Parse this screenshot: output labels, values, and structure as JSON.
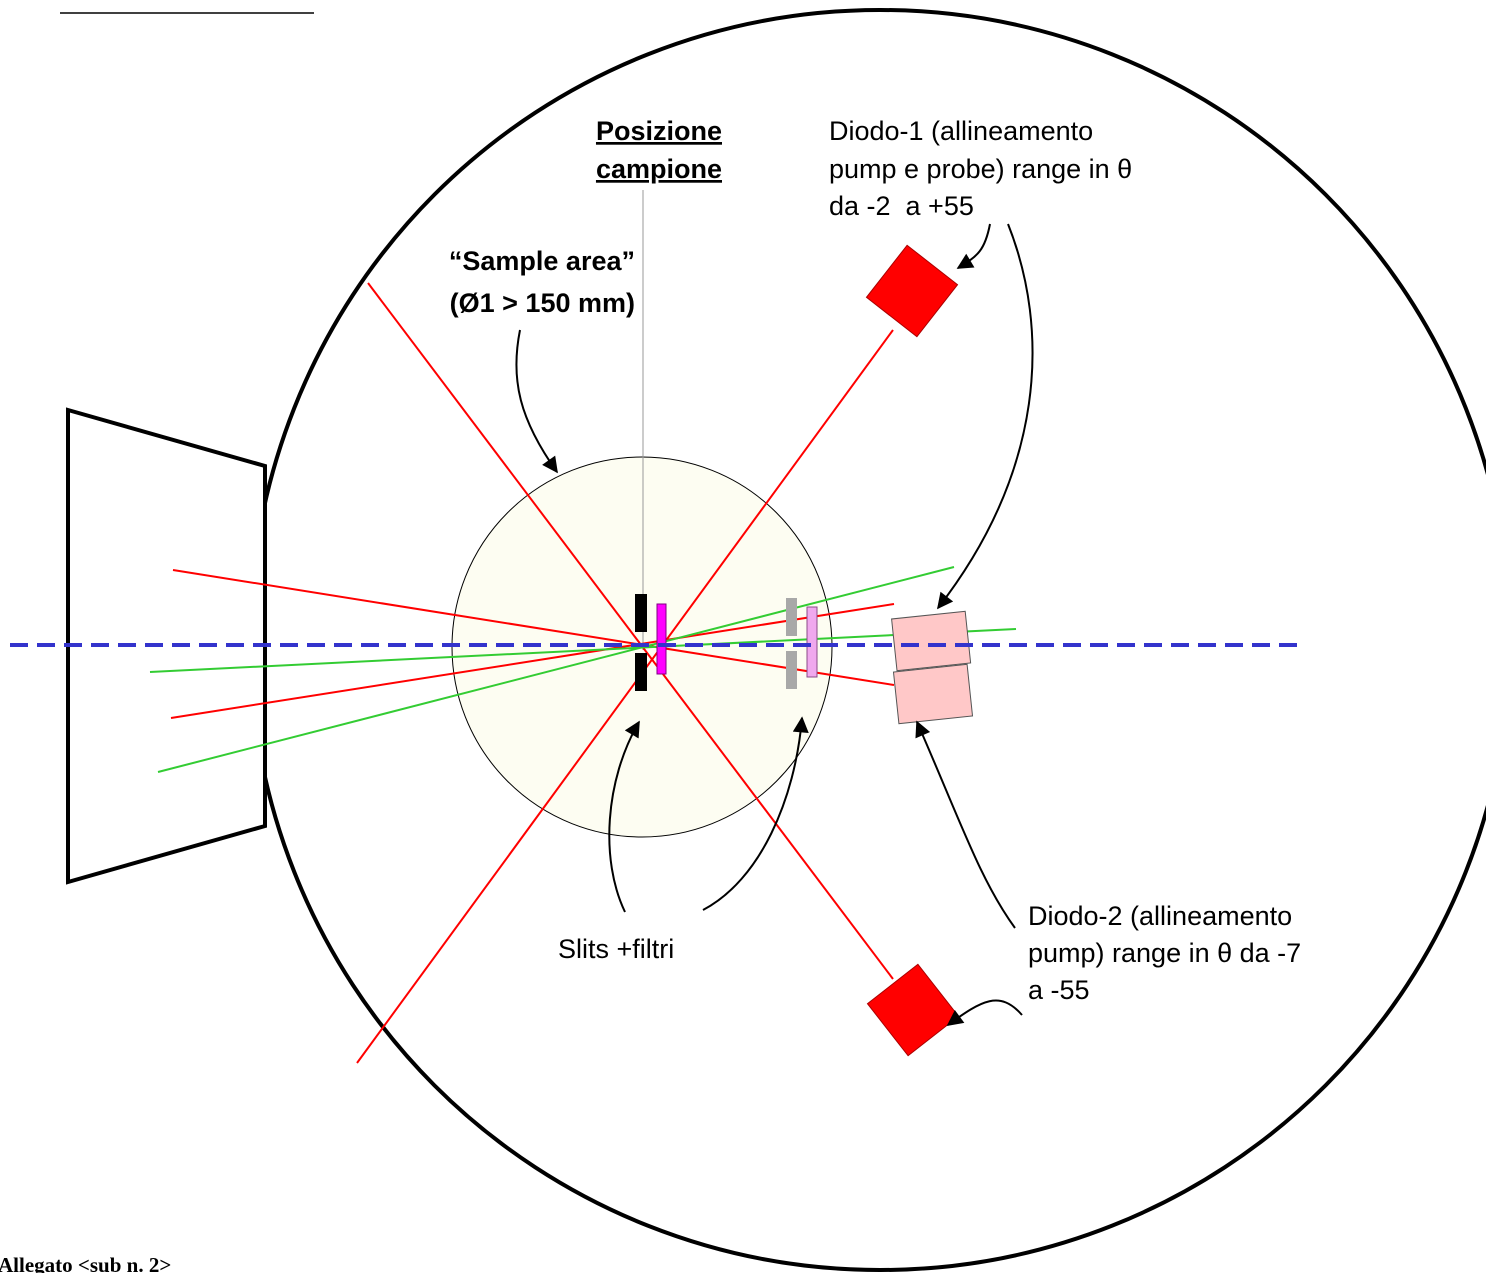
{
  "labels": {
    "posizione_line1": "Posizione",
    "posizione_line2": "campione",
    "sample_area_line1": "“Sample area”",
    "sample_area_line2": "(Ø1 > 150 mm)",
    "diodo1_line1": "Diodo-1 (allineamento",
    "diodo1_line2": "pump e probe) range in θ",
    "diodo1_line3": "da -2  a +55",
    "diodo2_line1": "Diodo-2 (allineamento",
    "diodo2_line2": "pump) range in θ da -7",
    "diodo2_line3": "a -55",
    "slits": "Slits +filtri",
    "footer": "Allegato <sub n. 2>"
  },
  "colors": {
    "beam_red": "#ff0000",
    "beam_green": "#33cc33",
    "axis_blue": "#3333cc",
    "diode_red": "#ff0000",
    "diode_pink": "#ffc8c8",
    "sample_fill": "#fdfdf2",
    "filter_magenta": "#ff00ff",
    "filter_pink": "#f0a8ee",
    "slit_black": "#000000",
    "slit_gray": "#a8a8a8"
  }
}
